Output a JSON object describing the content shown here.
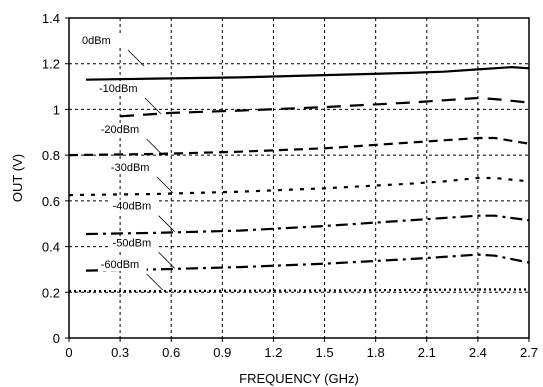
{
  "chart_data": {
    "type": "line",
    "xlabel": "FREQUENCY (GHz)",
    "ylabel": "OUT (V)",
    "xlim": [
      0,
      2.7
    ],
    "ylim": [
      0,
      1.4
    ],
    "x_ticks": [
      "0",
      "0.3",
      "0.6",
      "0.9",
      "1.2",
      "1.5",
      "1.8",
      "2.1",
      "2.4",
      "2.7"
    ],
    "y_ticks": [
      "0",
      "0.2",
      "0.4",
      "0.6",
      "0.8",
      "1",
      "1.2",
      "1.4"
    ],
    "grid": true,
    "series": [
      {
        "name": "0dBm",
        "style": "solid",
        "x": [
          0.1,
          0.5,
          1.0,
          1.5,
          2.0,
          2.2,
          2.4,
          2.6,
          2.7
        ],
        "y": [
          1.13,
          1.135,
          1.14,
          1.15,
          1.16,
          1.165,
          1.175,
          1.185,
          1.18
        ],
        "label_anchor": {
          "x": 0.44,
          "y": 1.19
        }
      },
      {
        "name": "-10dBm",
        "style": "long-dash",
        "x": [
          0.3,
          0.6,
          1.0,
          1.5,
          2.0,
          2.2,
          2.4,
          2.5,
          2.7
        ],
        "y": [
          0.97,
          0.985,
          0.995,
          1.01,
          1.03,
          1.04,
          1.05,
          1.045,
          1.03
        ],
        "label_anchor": {
          "x": 0.54,
          "y": 0.98
        }
      },
      {
        "name": "-20dBm",
        "style": "dash",
        "x": [
          0,
          0.5,
          1.0,
          1.5,
          2.0,
          2.2,
          2.4,
          2.5,
          2.7
        ],
        "y": [
          0.8,
          0.805,
          0.815,
          0.83,
          0.855,
          0.865,
          0.875,
          0.875,
          0.85
        ],
        "label_anchor": {
          "x": 0.55,
          "y": 0.8
        }
      },
      {
        "name": "-30dBm",
        "style": "short-dash",
        "x": [
          0,
          0.5,
          1.0,
          1.5,
          2.0,
          2.2,
          2.4,
          2.5,
          2.7
        ],
        "y": [
          0.625,
          0.63,
          0.64,
          0.655,
          0.675,
          0.685,
          0.7,
          0.7,
          0.685
        ],
        "label_anchor": {
          "x": 0.61,
          "y": 0.635
        }
      },
      {
        "name": "-40dBm",
        "style": "dash-dot",
        "x": [
          0.1,
          0.5,
          1.0,
          1.5,
          2.0,
          2.2,
          2.4,
          2.5,
          2.7
        ],
        "y": [
          0.455,
          0.46,
          0.47,
          0.49,
          0.515,
          0.525,
          0.535,
          0.535,
          0.515
        ],
        "label_anchor": {
          "x": 0.62,
          "y": 0.465
        }
      },
      {
        "name": "-50dBm",
        "style": "dash-dot",
        "x": [
          0.1,
          0.5,
          1.0,
          1.5,
          2.0,
          2.2,
          2.4,
          2.5,
          2.7
        ],
        "y": [
          0.295,
          0.3,
          0.31,
          0.325,
          0.345,
          0.355,
          0.365,
          0.36,
          0.33
        ],
        "label_anchor": {
          "x": 0.62,
          "y": 0.305
        }
      },
      {
        "name": "-60dBm",
        "style": "dotted",
        "x": [
          0,
          0.5,
          1.0,
          1.5,
          2.0,
          2.4,
          2.7
        ],
        "y": [
          0.205,
          0.205,
          0.207,
          0.208,
          0.21,
          0.212,
          0.212
        ],
        "label_anchor": {
          "x": 0.55,
          "y": 0.21
        }
      }
    ]
  }
}
